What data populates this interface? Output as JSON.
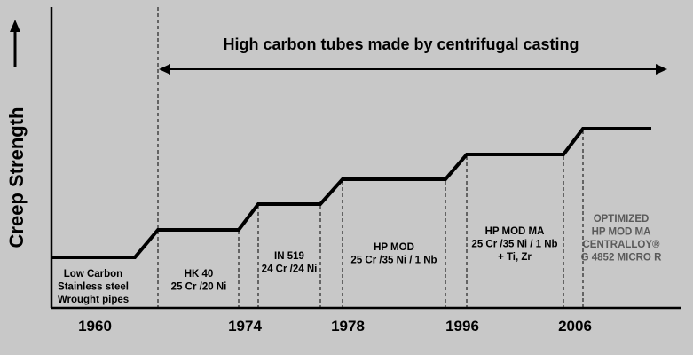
{
  "chart_data": {
    "type": "line",
    "title": "High carbon tubes made by centrifugal casting",
    "ylabel": "Creep Strength",
    "x_ticks": [
      "1960",
      "1974",
      "1978",
      "1996",
      "2006"
    ],
    "grid": false,
    "colors": {
      "background": "#c8c8c8",
      "line": "#000000",
      "faded_text": "#5a5a5a"
    },
    "steps": [
      {
        "lines": [
          "Low Carbon",
          "Stainless steel",
          "Wrought pipes"
        ],
        "level": 1
      },
      {
        "lines": [
          "HK 40",
          "25 Cr /20 Ni"
        ],
        "level": 2
      },
      {
        "lines": [
          "IN 519",
          "24 Cr /24 Ni"
        ],
        "level": 3
      },
      {
        "lines": [
          "HP MOD",
          "25 Cr /35 Ni / 1 Nb"
        ],
        "level": 4
      },
      {
        "lines": [
          "HP MOD MA",
          "25 Cr /35 Ni / 1 Nb",
          "+ Ti, Zr"
        ],
        "level": 5
      },
      {
        "lines": [
          "OPTIMIZED",
          "HP MOD MA",
          "CENTRALLOY®",
          "G 4852 MICRO R"
        ],
        "level": 6
      }
    ]
  }
}
